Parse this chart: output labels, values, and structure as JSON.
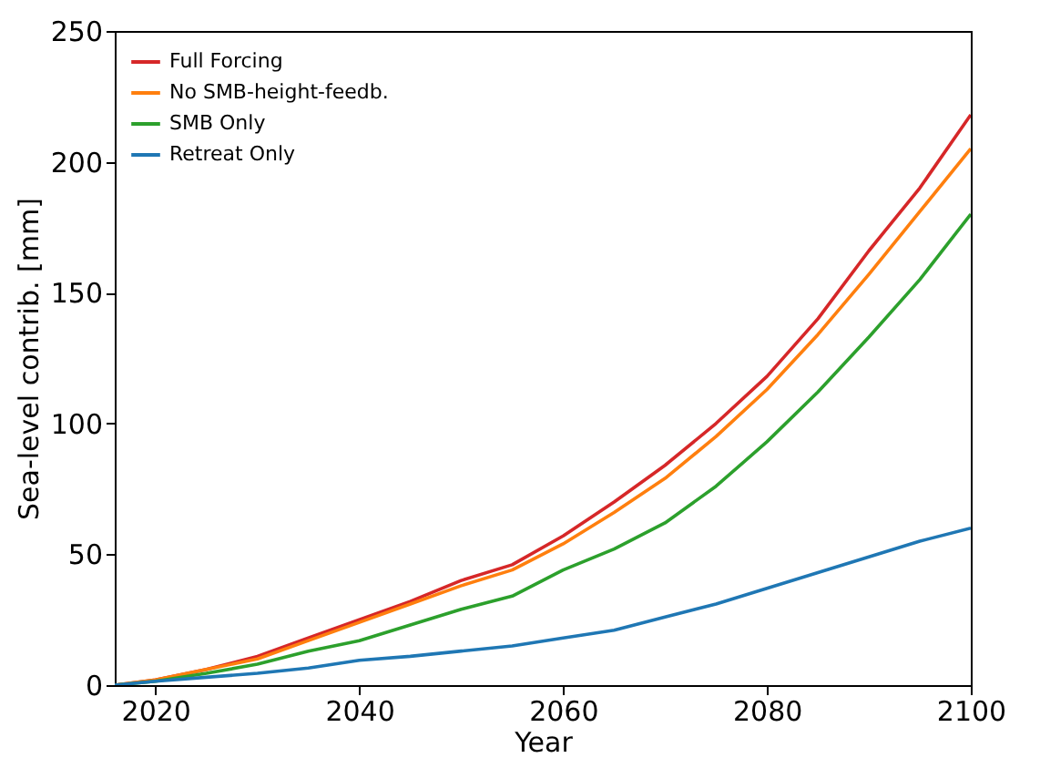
{
  "chart_data": {
    "type": "line",
    "xlabel": "Year",
    "ylabel": "Sea-level contrib. [mm]",
    "x": [
      2016,
      2020,
      2025,
      2030,
      2035,
      2040,
      2045,
      2050,
      2055,
      2060,
      2065,
      2070,
      2075,
      2080,
      2085,
      2090,
      2095,
      2100
    ],
    "series": [
      {
        "name": "Full Forcing",
        "color": "#d62728",
        "values": [
          0,
          2,
          6,
          11,
          18,
          25,
          32,
          40,
          46,
          57,
          70,
          84,
          100,
          118,
          140,
          166,
          190,
          218
        ]
      },
      {
        "name": "No SMB-height-feedb.",
        "color": "#ff7f0e",
        "values": [
          0,
          2,
          6,
          10,
          17,
          24,
          31,
          38,
          44,
          54,
          66,
          79,
          95,
          113,
          134,
          157,
          181,
          205
        ]
      },
      {
        "name": "SMB Only",
        "color": "#2ca02c",
        "values": [
          0,
          1.5,
          4.5,
          8,
          13,
          17,
          23,
          29,
          34,
          44,
          52,
          62,
          76,
          93,
          112,
          133,
          155,
          180
        ]
      },
      {
        "name": "Retreat Only",
        "color": "#1f77b4",
        "values": [
          0,
          1.5,
          3,
          4.5,
          6.5,
          9.5,
          11,
          13,
          15,
          18,
          21,
          26,
          31,
          37,
          43,
          49,
          55,
          60
        ]
      }
    ],
    "xlim": [
      2016,
      2100
    ],
    "xticks": [
      2020,
      2040,
      2060,
      2080,
      2100
    ],
    "ylim": [
      0,
      250
    ],
    "yticks": [
      0,
      50,
      100,
      150,
      200,
      250
    ],
    "grid": false,
    "legend": "top left"
  }
}
